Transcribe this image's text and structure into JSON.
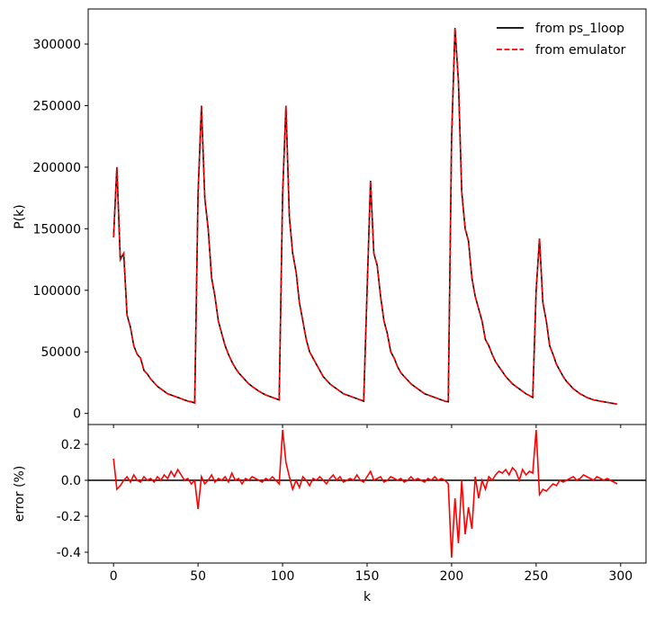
{
  "chart_data": [
    {
      "type": "line",
      "ylabel": "P(k)",
      "legend": "upper right",
      "x": [
        0,
        2,
        4,
        6,
        8,
        10,
        12,
        14,
        16,
        18,
        20,
        22,
        24,
        26,
        28,
        30,
        32,
        34,
        36,
        38,
        40,
        42,
        44,
        46,
        48,
        50,
        52,
        54,
        56,
        58,
        60,
        62,
        64,
        66,
        68,
        70,
        72,
        74,
        76,
        78,
        80,
        82,
        84,
        86,
        88,
        90,
        92,
        94,
        96,
        98,
        100,
        102,
        104,
        106,
        108,
        110,
        112,
        114,
        116,
        118,
        120,
        122,
        124,
        126,
        128,
        130,
        132,
        134,
        136,
        138,
        140,
        142,
        144,
        146,
        148,
        150,
        152,
        154,
        156,
        158,
        160,
        162,
        164,
        166,
        168,
        170,
        172,
        174,
        176,
        178,
        180,
        182,
        184,
        186,
        188,
        190,
        192,
        194,
        196,
        198,
        200,
        202,
        204,
        206,
        208,
        210,
        212,
        214,
        216,
        218,
        220,
        222,
        224,
        226,
        228,
        230,
        232,
        234,
        236,
        238,
        240,
        242,
        244,
        246,
        248,
        250,
        252,
        254,
        256,
        258,
        260,
        262,
        264,
        266,
        268,
        270,
        272,
        274,
        276,
        278,
        280,
        282,
        284,
        286,
        288,
        290,
        292,
        294,
        296,
        298
      ],
      "ylim": [
        -9000,
        328500
      ],
      "yticks": [
        0,
        50000,
        100000,
        150000,
        200000,
        250000,
        300000
      ],
      "series": [
        {
          "name": "from ps_1loop",
          "color": "#000000",
          "dash": "solid",
          "values": [
            143000,
            200000,
            125000,
            130000,
            80000,
            70000,
            55000,
            48000,
            45000,
            35000,
            32000,
            28000,
            25000,
            22000,
            20000,
            18000,
            16000,
            15000,
            14000,
            13000,
            12000,
            11000,
            10000,
            9500,
            8500,
            178000,
            250000,
            175000,
            150000,
            110000,
            95000,
            75000,
            65000,
            55000,
            48000,
            42000,
            37000,
            33000,
            30000,
            27000,
            24000,
            22000,
            20000,
            18000,
            16500,
            15000,
            14000,
            13000,
            12000,
            11000,
            178000,
            250000,
            160000,
            130000,
            115000,
            90000,
            75000,
            60000,
            50000,
            45000,
            40000,
            35000,
            30000,
            27000,
            24000,
            22000,
            20000,
            18000,
            16000,
            15000,
            14000,
            13000,
            12000,
            11000,
            10000,
            100000,
            189000,
            130000,
            120000,
            95000,
            75000,
            65000,
            50000,
            45000,
            38000,
            33000,
            30000,
            27000,
            24000,
            22000,
            20000,
            18000,
            16000,
            15000,
            14000,
            13000,
            12000,
            11000,
            10000,
            9500,
            223000,
            313000,
            270000,
            180000,
            150000,
            140000,
            110000,
            95000,
            85000,
            75000,
            60000,
            55000,
            48000,
            42000,
            38000,
            34000,
            30000,
            27000,
            24000,
            22000,
            20000,
            18000,
            16000,
            14500,
            13000,
            100000,
            142000,
            90000,
            75000,
            55000,
            48000,
            40000,
            35000,
            30000,
            26000,
            23000,
            20000,
            18000,
            16000,
            14500,
            13000,
            12000,
            11000,
            10500,
            10000,
            9500,
            9000,
            8500,
            8000,
            7500
          ]
        },
        {
          "name": "from emulator",
          "color": "#ff0000",
          "dash": "dashed",
          "values": [
            143000,
            200000,
            125000,
            130000,
            80000,
            70000,
            55000,
            48000,
            45000,
            35000,
            32000,
            28000,
            25000,
            22000,
            20000,
            18000,
            16000,
            15000,
            14000,
            13000,
            12000,
            11000,
            10000,
            9500,
            8500,
            178000,
            250000,
            175000,
            150000,
            110000,
            95000,
            75000,
            65000,
            55000,
            48000,
            42000,
            37000,
            33000,
            30000,
            27000,
            24000,
            22000,
            20000,
            18000,
            16500,
            15000,
            14000,
            13000,
            12000,
            11000,
            178000,
            250000,
            160000,
            130000,
            115000,
            90000,
            75000,
            60000,
            50000,
            45000,
            40000,
            35000,
            30000,
            27000,
            24000,
            22000,
            20000,
            18000,
            16000,
            15000,
            14000,
            13000,
            12000,
            11000,
            10000,
            100000,
            189000,
            130000,
            120000,
            95000,
            75000,
            65000,
            50000,
            45000,
            38000,
            33000,
            30000,
            27000,
            24000,
            22000,
            20000,
            18000,
            16000,
            15000,
            14000,
            13000,
            12000,
            11000,
            10000,
            9500,
            223000,
            313000,
            270000,
            180000,
            150000,
            140000,
            110000,
            95000,
            85000,
            75000,
            60000,
            55000,
            48000,
            42000,
            38000,
            34000,
            30000,
            27000,
            24000,
            22000,
            20000,
            18000,
            16000,
            14500,
            13000,
            100000,
            142000,
            90000,
            75000,
            55000,
            48000,
            40000,
            35000,
            30000,
            26000,
            23000,
            20000,
            18000,
            16000,
            14500,
            13000,
            12000,
            11000,
            10500,
            10000,
            9500,
            9000,
            8500,
            8000,
            7500
          ]
        }
      ]
    },
    {
      "type": "line",
      "xlabel": "k",
      "ylabel": "error (%)",
      "hline": 0,
      "xlim": [
        -15,
        315
      ],
      "xticks": [
        0,
        50,
        100,
        150,
        200,
        250,
        300
      ],
      "ylim": [
        -0.46,
        0.31
      ],
      "yticks": [
        -0.4,
        -0.2,
        {
          "value": 0,
          "label": "0.0"
        },
        0.2
      ],
      "series": [
        {
          "name": "error",
          "color": "#ff0000",
          "values": [
            0.12,
            -0.05,
            -0.03,
            0.0,
            0.02,
            -0.01,
            0.03,
            0.0,
            -0.01,
            0.02,
            0.0,
            0.01,
            -0.01,
            0.02,
            0.0,
            0.03,
            0.01,
            0.05,
            0.02,
            0.06,
            0.03,
            0.0,
            0.01,
            -0.02,
            0.0,
            -0.16,
            0.02,
            -0.02,
            0.0,
            0.03,
            -0.01,
            0.01,
            0.0,
            0.02,
            -0.01,
            0.04,
            0.0,
            0.01,
            -0.02,
            0.01,
            0.0,
            0.02,
            0.01,
            0.0,
            -0.01,
            0.01,
            0.0,
            0.02,
            0.0,
            -0.02,
            0.28,
            0.1,
            0.02,
            -0.05,
            0.0,
            -0.04,
            0.02,
            0.0,
            -0.03,
            0.01,
            0.0,
            0.02,
            0.0,
            -0.02,
            0.01,
            0.03,
            0.0,
            0.02,
            -0.01,
            0.0,
            0.01,
            0.0,
            0.03,
            0.0,
            -0.01,
            0.02,
            0.05,
            0.0,
            0.01,
            0.02,
            -0.01,
            0.0,
            0.02,
            0.01,
            0.0,
            0.01,
            -0.01,
            0.0,
            0.02,
            0.0,
            0.01,
            0.0,
            -0.01,
            0.01,
            0.0,
            0.02,
            0.0,
            0.01,
            0.0,
            -0.02,
            -0.43,
            -0.1,
            -0.35,
            0.0,
            -0.3,
            -0.15,
            -0.27,
            0.02,
            -0.1,
            0.0,
            -0.05,
            0.02,
            0.0,
            0.03,
            0.05,
            0.04,
            0.06,
            0.03,
            0.07,
            0.05,
            0.0,
            0.06,
            0.03,
            0.05,
            0.04,
            0.28,
            -0.08,
            -0.05,
            -0.06,
            -0.04,
            -0.02,
            -0.03,
            0.0,
            -0.01,
            0.0,
            0.01,
            0.02,
            0.0,
            0.01,
            0.03,
            0.02,
            0.01,
            0.0,
            0.02,
            0.01,
            0.0,
            0.01,
            0.0,
            -0.01,
            -0.02
          ]
        }
      ]
    }
  ]
}
